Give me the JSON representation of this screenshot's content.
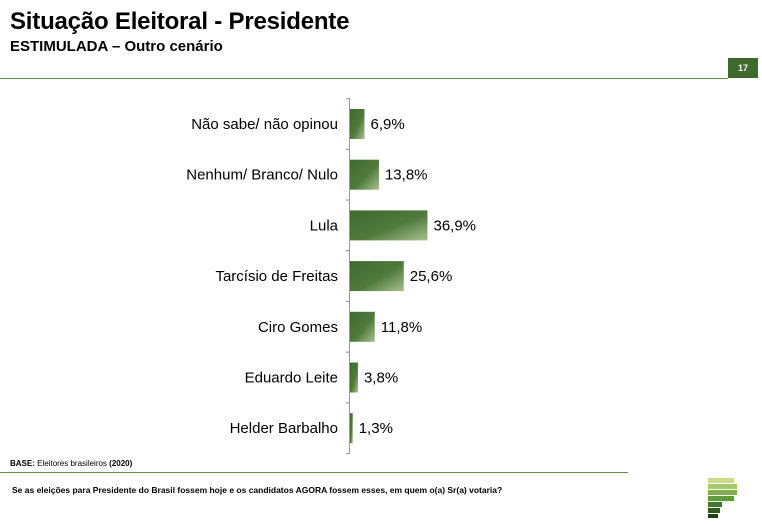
{
  "header": {
    "title": "Situação Eleitoral - Presidente",
    "subtitle": "ESTIMULADA – Outro cenário",
    "page_number": "17"
  },
  "chart_data": {
    "type": "bar",
    "orientation": "horizontal",
    "categories": [
      "Não sabe/ não opinou",
      "Nenhum/ Branco/ Nulo",
      "Lula",
      "Tarcísio de Freitas",
      "Ciro Gomes",
      "Eduardo Leite",
      "Helder Barbalho"
    ],
    "values": [
      6.9,
      13.8,
      36.9,
      25.6,
      11.8,
      3.8,
      1.3
    ],
    "value_labels": [
      "6,9%",
      "13,8%",
      "36,9%",
      "25,6%",
      "11,8%",
      "3,8%",
      "1,3%"
    ],
    "unit": "%",
    "bar_color": "#3f6a2e",
    "bar_color_light": "#a9c08f",
    "grid": false,
    "legend": "none"
  },
  "footer": {
    "base_label": "BASE:",
    "base_text": "Eleitores brasileiros",
    "base_year": "(2020)",
    "question": "Se as eleições para Presidente do Brasil fossem hoje e os candidatos AGORA fossem esses, em quem o(a) Sr(a) votaria?",
    "accent_color": "#3f6a2e"
  }
}
